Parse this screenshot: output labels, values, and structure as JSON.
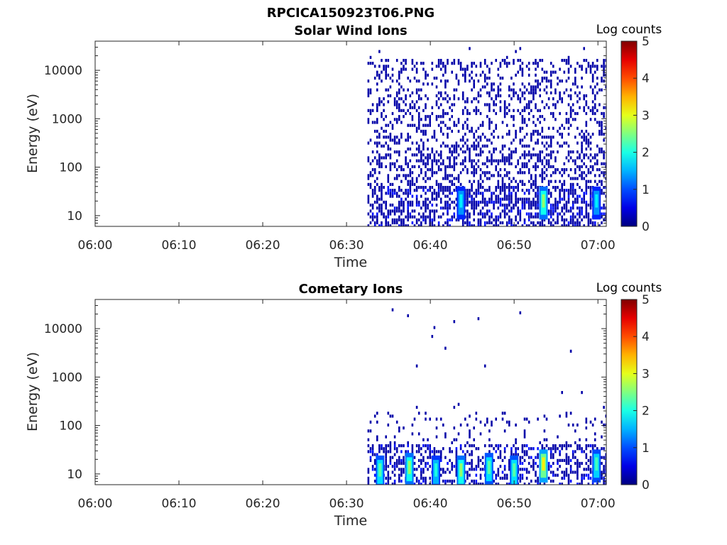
{
  "figure": {
    "title": "RPCICA150923T06.PNG"
  },
  "chart_data": [
    {
      "type": "heatmap",
      "title": "Solar Wind Ions",
      "xlabel": "Time",
      "ylabel": "Energy (eV)",
      "y_scale": "log",
      "xlim": [
        "06:00",
        "07:01"
      ],
      "ylim": [
        6,
        40000
      ],
      "x_ticks": [
        "06:00",
        "06:10",
        "06:20",
        "06:30",
        "06:40",
        "06:50",
        "07:00"
      ],
      "y_ticks": [
        "10",
        "100",
        "1000",
        "10000"
      ],
      "colorbar": {
        "label": "Log counts",
        "min": 0,
        "max": 5,
        "ticks": [
          "0",
          "1",
          "2",
          "3",
          "4",
          "5"
        ],
        "colormap": "jet"
      },
      "data_start": "06:32:30",
      "bright_spots": [
        {
          "time": "06:43:40",
          "energy_ev": 25,
          "log_counts": 1.8
        },
        {
          "time": "06:53:30",
          "energy_ev": 25,
          "log_counts": 2.6
        },
        {
          "time": "06:59:50",
          "energy_ev": 25,
          "log_counts": 1.8
        }
      ]
    },
    {
      "type": "heatmap",
      "title": "Cometary Ions",
      "xlabel": "Time",
      "ylabel": "Energy (eV)",
      "y_scale": "log",
      "xlim": [
        "06:00",
        "07:01"
      ],
      "ylim": [
        6,
        40000
      ],
      "x_ticks": [
        "06:00",
        "06:10",
        "06:20",
        "06:30",
        "06:40",
        "06:50",
        "07:00"
      ],
      "y_ticks": [
        "10",
        "100",
        "1000",
        "10000"
      ],
      "colorbar": {
        "label": "Log counts",
        "min": 0,
        "max": 5,
        "ticks": [
          "0",
          "1",
          "2",
          "3",
          "4",
          "5"
        ],
        "colormap": "jet"
      },
      "data_start": "06:32:30",
      "bright_spots": [
        {
          "time": "06:34:00",
          "energy_ev": 15,
          "log_counts": 2.3
        },
        {
          "time": "06:37:30",
          "energy_ev": 17,
          "log_counts": 2.6
        },
        {
          "time": "06:40:40",
          "energy_ev": 15,
          "log_counts": 2.0
        },
        {
          "time": "06:43:40",
          "energy_ev": 15,
          "log_counts": 2.6
        },
        {
          "time": "06:47:00",
          "energy_ev": 17,
          "log_counts": 2.3
        },
        {
          "time": "06:50:00",
          "energy_ev": 15,
          "log_counts": 2.3
        },
        {
          "time": "06:53:30",
          "energy_ev": 20,
          "log_counts": 3.2
        },
        {
          "time": "06:59:50",
          "energy_ev": 20,
          "log_counts": 2.2
        }
      ]
    }
  ]
}
